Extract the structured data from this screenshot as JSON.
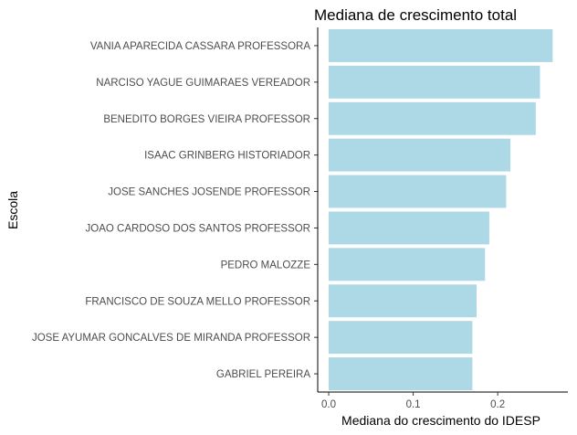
{
  "chart_data": {
    "type": "bar",
    "orientation": "horizontal",
    "title": "Mediana de crescimento total",
    "xlabel": "Mediana do crescimento do IDESP",
    "ylabel": "Escola",
    "categories": [
      "VANIA APARECIDA CASSARA PROFESSORA",
      "NARCISO YAGUE GUIMARAES VEREADOR",
      "BENEDITO BORGES VIEIRA PROFESSOR",
      "ISAAC GRINBERG HISTORIADOR",
      "JOSE SANCHES JOSENDE PROFESSOR",
      "JOAO CARDOSO DOS SANTOS PROFESSOR",
      "PEDRO MALOZZE",
      "FRANCISCO DE SOUZA MELLO PROFESSOR",
      "JOSE AYUMAR GONCALVES DE MIRANDA PROFESSOR",
      "GABRIEL PEREIRA"
    ],
    "values": [
      0.265,
      0.25,
      0.245,
      0.215,
      0.21,
      0.19,
      0.185,
      0.175,
      0.17,
      0.17
    ],
    "xlim": [
      -0.013,
      0.283
    ],
    "xticks": [
      0.0,
      0.1,
      0.2
    ],
    "xtick_labels": [
      "0.0",
      "0.1",
      "0.2"
    ],
    "bar_color": "#add8e6",
    "grid": false,
    "legend": "none"
  }
}
